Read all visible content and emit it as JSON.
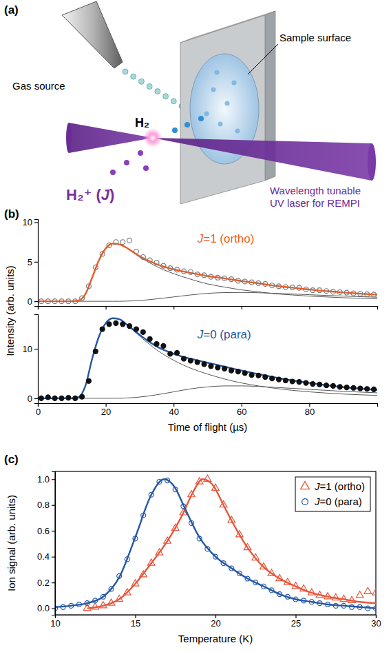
{
  "diagram": {
    "panel": "(a)",
    "gas_source": "Gas source",
    "sample_surface": "Sample surface",
    "molecule": "H₂",
    "laser": [
      "Wavelength tunable",
      "UV laser for REMPI"
    ],
    "ion": "H₂⁺ (J)"
  },
  "chart_data": [
    {
      "type": "line",
      "panel": "(b)",
      "ylabel": "Intensity (arb. units)",
      "xlim": [
        0,
        100
      ],
      "xticks": [
        0,
        20,
        40,
        60,
        80
      ],
      "ylim": [
        -0.6,
        10.4
      ],
      "yticks": [
        0,
        5,
        10
      ],
      "tick_labels": "y",
      "annotation": {
        "text": "J=1 (ortho)",
        "color": "#ee5a24"
      },
      "series": [
        {
          "type": "line",
          "line_style": "thin",
          "color": "#555555",
          "x": [
            0,
            4,
            8,
            10,
            12,
            14,
            16,
            18,
            20,
            22,
            24,
            26,
            28,
            30,
            32,
            35,
            40,
            45,
            50,
            55,
            60,
            65,
            70,
            75,
            80,
            85,
            90,
            95,
            100
          ],
          "values": [
            0,
            0,
            0,
            0,
            0.1,
            0.9,
            3.0,
            5.2,
            6.7,
            7.3,
            7.2,
            6.8,
            6.2,
            5.6,
            5.1,
            4.4,
            3.5,
            2.8,
            2.2,
            1.8,
            1.45,
            1.2,
            0.95,
            0.8,
            0.65,
            0.55,
            0.45,
            0.38,
            0.32
          ]
        },
        {
          "type": "line",
          "line_style": "thin",
          "color": "#555555",
          "x": [
            0,
            4,
            8,
            10,
            12,
            14,
            16,
            18,
            20,
            22,
            24,
            26,
            28,
            30,
            32,
            35,
            40,
            45,
            50,
            55,
            60,
            65,
            70,
            75,
            80,
            85,
            90,
            95,
            100
          ],
          "values": [
            0,
            0,
            0,
            0,
            0,
            0,
            0,
            0,
            0,
            0,
            0,
            0.02,
            0.05,
            0.1,
            0.17,
            0.3,
            0.55,
            0.8,
            1.0,
            1.1,
            1.12,
            1.08,
            1.0,
            0.92,
            0.83,
            0.74,
            0.66,
            0.58,
            0.52
          ]
        },
        {
          "type": "line",
          "line_style": "solid",
          "color": "#ee5a24",
          "x": [
            0,
            4,
            8,
            10,
            12,
            14,
            16,
            18,
            20,
            22,
            24,
            26,
            28,
            30,
            32,
            35,
            40,
            45,
            50,
            55,
            60,
            65,
            70,
            75,
            80,
            85,
            90,
            95,
            100
          ],
          "values": [
            0,
            0,
            0,
            0,
            0.1,
            0.9,
            3.0,
            5.2,
            6.7,
            7.3,
            7.2,
            6.82,
            6.25,
            5.7,
            5.27,
            4.7,
            4.05,
            3.6,
            3.2,
            2.9,
            2.57,
            2.28,
            1.95,
            1.72,
            1.48,
            1.29,
            1.11,
            0.96,
            0.84
          ]
        },
        {
          "type": "scatter",
          "marker": "circle-open",
          "color": "#7a7a7a",
          "x": [
            1,
            3,
            5,
            7,
            9,
            11,
            13,
            15,
            17,
            19,
            21,
            23,
            25,
            27,
            29,
            31,
            33,
            35,
            37,
            39,
            41,
            43,
            45,
            47,
            49,
            51,
            53,
            55,
            57,
            59,
            61,
            63,
            65,
            67,
            69,
            71,
            73,
            75,
            77,
            79,
            81,
            83,
            85,
            87,
            89,
            91,
            93,
            95,
            97,
            99
          ],
          "values": [
            0,
            0,
            0,
            0,
            0,
            0,
            0.4,
            1.9,
            4.3,
            6.0,
            7.1,
            7.5,
            7.5,
            7.7,
            6.3,
            5.6,
            5.2,
            4.9,
            4.5,
            4.2,
            4.0,
            3.8,
            3.7,
            3.4,
            3.3,
            3.1,
            3.0,
            2.9,
            2.8,
            2.6,
            2.5,
            2.4,
            2.3,
            2.2,
            2.0,
            1.9,
            1.8,
            1.75,
            1.7,
            1.5,
            1.4,
            1.4,
            1.3,
            1.2,
            1.15,
            1.1,
            1.0,
            0.95,
            0.9,
            0.85
          ]
        }
      ]
    },
    {
      "type": "line",
      "xlabel": "Time of flight (µs)",
      "xlim": [
        0,
        100
      ],
      "xticks": [
        0,
        20,
        40,
        60,
        80
      ],
      "ylim": [
        -1,
        17
      ],
      "yticks": [
        0,
        10
      ],
      "annotation": {
        "text": "J=0 (para)",
        "color": "#2456a6"
      },
      "series": [
        {
          "type": "line",
          "line_style": "thin",
          "color": "#555555",
          "x": [
            0,
            4,
            8,
            10,
            12,
            14,
            16,
            18,
            20,
            22,
            24,
            26,
            28,
            30,
            32,
            35,
            40,
            45,
            50,
            55,
            60,
            65,
            70,
            75,
            80,
            85,
            90,
            95,
            100
          ],
          "values": [
            0,
            0,
            0,
            0,
            0.2,
            2.5,
            8,
            12.5,
            15.2,
            16.2,
            16.0,
            15.0,
            13.8,
            12.6,
            11.4,
            9.8,
            7.7,
            6.1,
            4.9,
            3.9,
            3.1,
            2.5,
            2.0,
            1.6,
            1.3,
            1.05,
            0.85,
            0.7,
            0.58
          ]
        },
        {
          "type": "line",
          "line_style": "thin",
          "color": "#555555",
          "x": [
            0,
            4,
            8,
            10,
            12,
            14,
            16,
            18,
            20,
            22,
            24,
            26,
            28,
            30,
            32,
            35,
            40,
            45,
            50,
            55,
            60,
            65,
            70,
            75,
            80,
            85,
            90,
            95,
            100
          ],
          "values": [
            0,
            0,
            0,
            0,
            0,
            0,
            0,
            0,
            0,
            0,
            0,
            0.05,
            0.12,
            0.25,
            0.4,
            0.7,
            1.3,
            1.9,
            2.3,
            2.5,
            2.5,
            2.4,
            2.2,
            2.0,
            1.8,
            1.6,
            1.4,
            1.25,
            1.1
          ]
        },
        {
          "type": "line",
          "line_style": "solid",
          "color": "#2456a6",
          "x": [
            0,
            4,
            8,
            10,
            12,
            14,
            16,
            18,
            20,
            22,
            24,
            26,
            28,
            30,
            32,
            35,
            40,
            45,
            50,
            55,
            60,
            65,
            70,
            75,
            80,
            85,
            90,
            95,
            100
          ],
          "values": [
            0,
            0,
            0,
            0,
            0.2,
            2.5,
            8,
            12.5,
            15.2,
            16.2,
            16.0,
            15.05,
            13.92,
            12.85,
            11.8,
            10.5,
            9.0,
            8.0,
            7.2,
            6.4,
            5.6,
            4.9,
            4.2,
            3.6,
            3.1,
            2.65,
            2.25,
            1.95,
            1.68
          ]
        },
        {
          "type": "scatter",
          "marker": "circle-filled",
          "color": "#111111",
          "x": [
            1,
            3,
            5,
            7,
            9,
            11,
            13,
            15,
            17,
            19,
            21,
            23,
            25,
            27,
            29,
            31,
            33,
            35,
            37,
            39,
            41,
            43,
            45,
            47,
            49,
            51,
            53,
            55,
            57,
            59,
            61,
            63,
            65,
            67,
            69,
            71,
            73,
            75,
            77,
            79,
            81,
            83,
            85,
            87,
            89,
            91,
            93,
            95,
            97,
            99
          ],
          "values": [
            0,
            0.2,
            0,
            0,
            0.1,
            0,
            0.3,
            3.5,
            9.5,
            14.0,
            15.0,
            15.2,
            15.0,
            14.6,
            14.0,
            13.4,
            12.0,
            11.0,
            10.6,
            9.0,
            9.2,
            8.0,
            7.6,
            7.3,
            6.9,
            6.5,
            6.2,
            6.0,
            5.6,
            5.4,
            5.1,
            4.7,
            4.6,
            4.3,
            4.0,
            3.8,
            3.6,
            3.4,
            3.3,
            3.1,
            2.9,
            2.8,
            2.6,
            2.5,
            2.3,
            2.2,
            2.1,
            2.0,
            1.9,
            1.8
          ]
        }
      ]
    },
    {
      "type": "scatter",
      "panel": "(c)",
      "xlabel": "Temperature (K)",
      "ylabel": "Ion signal (arb. units)",
      "xlim": [
        10,
        30
      ],
      "xticks": [
        10,
        15,
        20,
        25,
        30
      ],
      "ylim": [
        -0.05,
        1.06
      ],
      "yticks": [
        {
          "value": 0,
          "label": "0.0"
        },
        0.2,
        0.4,
        0.6,
        0.8,
        {
          "value": 1,
          "label": "1.0"
        }
      ],
      "legend": "upper right",
      "series": [
        {
          "name": "J=1 (ortho)",
          "type": "scatter",
          "marker": "triangle-open",
          "color": "#e8553a",
          "x": [
            12,
            12.5,
            13,
            13.5,
            14,
            14.5,
            15,
            15.5,
            16,
            16.5,
            17,
            17.5,
            18,
            18.5,
            19,
            19.5,
            20,
            20.5,
            21,
            21.5,
            22,
            22.5,
            23,
            23.5,
            24,
            24.5,
            25,
            25.5,
            26,
            26.5,
            27,
            27.5,
            28,
            28.5,
            29,
            29.5,
            30
          ],
          "values": [
            0,
            0.01,
            0.02,
            0.04,
            0.07,
            0.12,
            0.19,
            0.26,
            0.35,
            0.43,
            0.52,
            0.62,
            0.74,
            0.88,
            0.98,
            1.0,
            0.93,
            0.8,
            0.68,
            0.57,
            0.47,
            0.39,
            0.32,
            0.27,
            0.23,
            0.2,
            0.17,
            0.15,
            0.12,
            0.1,
            0.09,
            0.08,
            0.07,
            0.06,
            0.1,
            0.13,
            0.12
          ]
        },
        {
          "name": "J=0 (para)",
          "type": "scatter",
          "marker": "circle-open",
          "color": "#2456a6",
          "x": [
            10,
            10.5,
            11,
            11.5,
            12,
            12.5,
            13,
            13.5,
            14,
            14.5,
            15,
            15.5,
            16,
            16.5,
            17,
            17.5,
            18,
            18.5,
            19,
            19.5,
            20,
            20.5,
            21,
            21.5,
            22,
            22.5,
            23,
            23.5,
            24,
            24.5,
            25,
            25.5,
            26,
            26.5,
            27,
            27.5,
            28,
            28.5,
            29,
            29.5,
            30
          ],
          "values": [
            0,
            0.01,
            0.02,
            0.03,
            0.04,
            0.06,
            0.09,
            0.15,
            0.25,
            0.38,
            0.54,
            0.72,
            0.88,
            0.98,
            0.99,
            0.92,
            0.79,
            0.66,
            0.54,
            0.46,
            0.4,
            0.35,
            0.31,
            0.27,
            0.23,
            0.2,
            0.17,
            0.14,
            0.11,
            0.09,
            0.07,
            0.06,
            0.05,
            0.04,
            0.03,
            0.02,
            0.02,
            0.01,
            0.01,
            0,
            0
          ]
        },
        {
          "type": "line",
          "line_style": "solid",
          "color": "#e8553a",
          "x": [
            12,
            13,
            14,
            15,
            16,
            17,
            18,
            18.6,
            19.2,
            19.8,
            20.5,
            21,
            22,
            23,
            24,
            25,
            26,
            27,
            28,
            29,
            30
          ],
          "values": [
            0,
            0.02,
            0.07,
            0.19,
            0.35,
            0.52,
            0.74,
            0.9,
            1.0,
            0.96,
            0.8,
            0.68,
            0.47,
            0.32,
            0.23,
            0.17,
            0.12,
            0.09,
            0.07,
            0.05,
            0.04
          ]
        },
        {
          "type": "line",
          "line_style": "solid",
          "color": "#2456a6",
          "x": [
            10,
            11,
            12,
            13,
            14,
            15,
            16,
            16.8,
            17.5,
            18,
            19,
            20,
            21,
            22,
            23,
            24,
            25,
            26,
            27,
            28,
            29,
            30
          ],
          "values": [
            0.01,
            0.02,
            0.04,
            0.09,
            0.24,
            0.55,
            0.88,
            1.0,
            0.93,
            0.8,
            0.55,
            0.4,
            0.31,
            0.23,
            0.17,
            0.11,
            0.07,
            0.05,
            0.03,
            0.02,
            0.01,
            0
          ]
        }
      ]
    }
  ]
}
